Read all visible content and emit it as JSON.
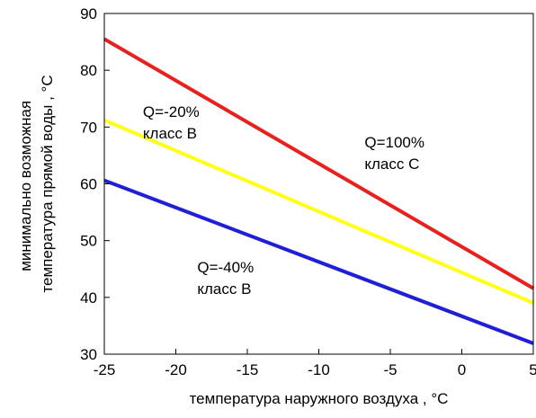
{
  "chart_data": {
    "type": "line",
    "xlabel": "температура наружного воздуха , °C",
    "ylabel_lines": [
      "минимально возможная",
      "температура прямой воды , °C"
    ],
    "xlim": [
      -25,
      5
    ],
    "ylim": [
      30,
      90
    ],
    "x_ticks": [
      -25,
      -20,
      -15,
      -10,
      -5,
      0,
      5
    ],
    "y_ticks": [
      30,
      40,
      50,
      60,
      70,
      80,
      90
    ],
    "grid": false,
    "series": [
      {
        "color": "#e8201e",
        "x": [
          -25,
          5
        ],
        "y": [
          85.5,
          41.6
        ]
      },
      {
        "color": "#ffff1a",
        "x": [
          -25,
          5
        ],
        "y": [
          71.2,
          39.0
        ]
      },
      {
        "color": "#1f1fd6",
        "x": [
          -25,
          5
        ],
        "y": [
          60.6,
          31.9
        ]
      }
    ],
    "annotations": [
      {
        "lines": [
          "Q=-20%",
          "класс B"
        ],
        "x": -22.3,
        "y": 71.8
      },
      {
        "lines": [
          "Q=100%",
          "класс C"
        ],
        "x": -6.8,
        "y": 66.4
      },
      {
        "lines": [
          "Q=-40%",
          "класс B"
        ],
        "x": -18.5,
        "y": 44.4
      }
    ]
  }
}
